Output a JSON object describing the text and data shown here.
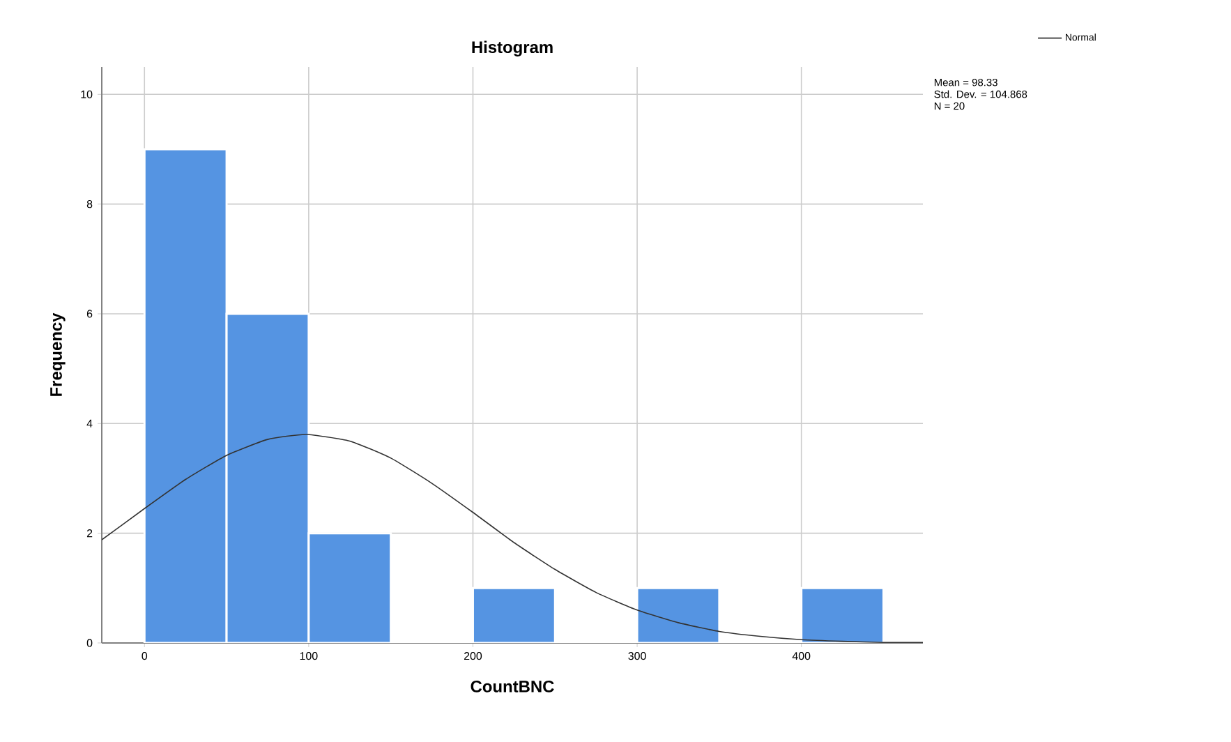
{
  "chart_data": {
    "type": "histogram",
    "title": "Histogram",
    "xlabel": "CountBNC",
    "ylabel": "Frequency",
    "annotations": [
      "Mean = 98.33",
      "Std. Dev. = 104.868",
      "N = 20"
    ],
    "bins": [
      0,
      50,
      100,
      150,
      200,
      250,
      300,
      350,
      400,
      450
    ],
    "series": [
      {
        "color": "#5594e2",
        "values": [
          9,
          6,
          2,
          0,
          1,
          0,
          1,
          0,
          1
        ]
      },
      {
        "type": "line",
        "name": "Normal",
        "color": "#333333",
        "x": [
          -26,
          0,
          25,
          50,
          75,
          98.33,
          125,
          150,
          175,
          200,
          225,
          250,
          275,
          300,
          325,
          350,
          375,
          400,
          425,
          450,
          474
        ],
        "values": [
          1.88,
          2.45,
          2.98,
          3.42,
          3.71,
          3.8,
          3.68,
          3.37,
          2.91,
          2.38,
          1.83,
          1.34,
          0.92,
          0.6,
          0.37,
          0.21,
          0.12,
          0.06,
          0.03,
          0.01,
          0.01
        ]
      }
    ],
    "xlim": [
      -26,
      474
    ],
    "ylim": [
      0,
      10.5
    ],
    "xticks": [
      0,
      100,
      200,
      300,
      400
    ],
    "yticks": [
      0,
      2,
      4,
      6,
      8,
      10
    ],
    "grid": true,
    "legend": "top right"
  }
}
